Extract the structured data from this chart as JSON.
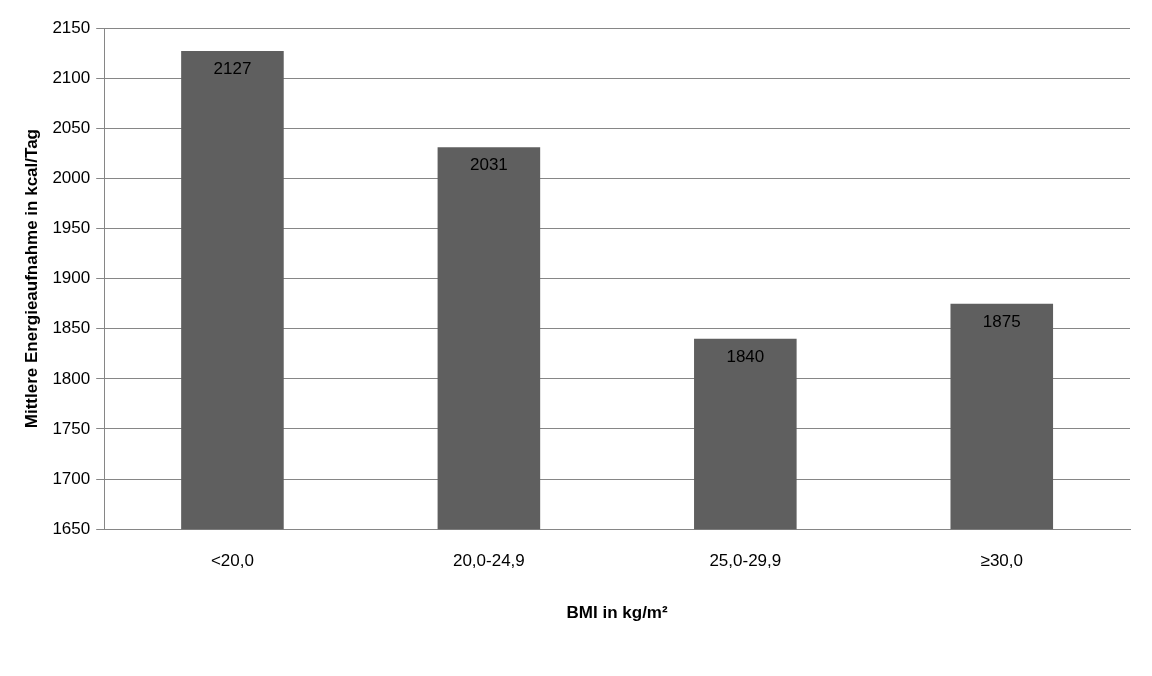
{
  "chart_data": {
    "type": "bar",
    "xlabel": "BMI in kg/m²",
    "ylabel": "Mittlere Energieaufnahme in kcal/Tag",
    "categories": [
      "<20,0",
      "20,0-24,9",
      "25,0-29,9",
      "≥30,0"
    ],
    "values": [
      2127,
      2031,
      1840,
      1875
    ],
    "color": "#5f5f5f",
    "ylim": [
      1650,
      2150
    ],
    "yticks": [
      1650,
      1700,
      1750,
      1800,
      1850,
      1900,
      1950,
      2000,
      2050,
      2100,
      2150
    ],
    "grid": "y",
    "legend": false,
    "data_labels": true
  }
}
